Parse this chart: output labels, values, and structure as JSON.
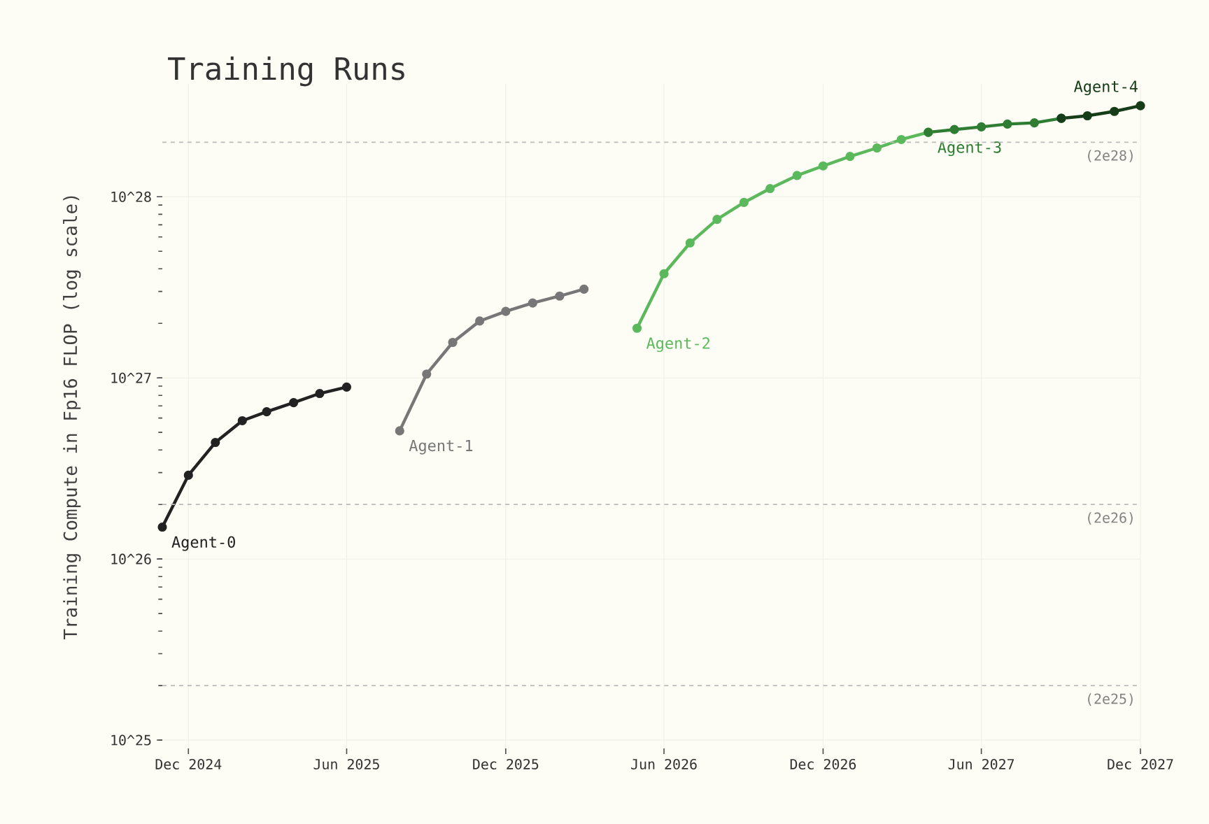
{
  "chart_data": {
    "type": "line",
    "title": "Training Runs",
    "ylabel": "Training Compute in Fp16 FLOP (log scale)",
    "log": "y",
    "grid": true,
    "marker": "circle",
    "line_style": "solid",
    "xlim": [
      "2024-11-01",
      "2027-12-01"
    ],
    "xticks": [
      {
        "value": "2024-12-01",
        "label": "Dec 2024"
      },
      {
        "value": "2025-06-01",
        "label": "Jun 2025"
      },
      {
        "value": "2025-12-01",
        "label": "Dec 2025"
      },
      {
        "value": "2026-06-01",
        "label": "Jun 2026"
      },
      {
        "value": "2026-12-01",
        "label": "Dec 2026"
      },
      {
        "value": "2027-06-01",
        "label": "Jun 2027"
      },
      {
        "value": "2027-12-01",
        "label": "Dec 2027"
      }
    ],
    "ylim": [
      9e+24,
      4.2e+28
    ],
    "yticks": [
      {
        "value": 1e+25,
        "label": "10^25"
      },
      {
        "value": 1e+26,
        "label": "10^26"
      },
      {
        "value": 1e+27,
        "label": "10^27"
      },
      {
        "value": 1e+28,
        "label": "10^28"
      }
    ],
    "ref_lines": [
      {
        "axis": "y",
        "value": 2e+28,
        "label": "(2e28)",
        "color": "#bbbbbb",
        "line_style": "dashed"
      },
      {
        "axis": "y",
        "value": 2e+26,
        "label": "(2e26)",
        "color": "#bbbbbb",
        "line_style": "dashed"
      },
      {
        "axis": "y",
        "value": 2e+25,
        "label": "(2e25)",
        "color": "#bbbbbb",
        "line_style": "dashed"
      }
    ],
    "series": [
      {
        "name": "Agent-0",
        "color": "#222222",
        "x": [
          "2024-11-01",
          "2024-12-01",
          "2025-01-01",
          "2025-02-01",
          "2025-03-01",
          "2025-04-01",
          "2025-05-01",
          "2025-06-01"
        ],
        "values": [
          1.5e+26,
          2.9e+26,
          4.4e+26,
          5.8e+26,
          6.5e+26,
          7.3e+26,
          8.2e+26,
          8.9e+26
        ]
      },
      {
        "name": "Agent-1",
        "color": "#777777",
        "x": [
          "2025-08-01",
          "2025-09-01",
          "2025-10-01",
          "2025-11-01",
          "2025-12-01",
          "2026-01-01",
          "2026-02-01",
          "2026-03-01"
        ],
        "values": [
          5.1e+26,
          1.05e+27,
          1.57e+27,
          2.06e+27,
          2.33e+27,
          2.59e+27,
          2.83e+27,
          3.09e+27
        ]
      },
      {
        "name": "Agent-2",
        "color": "#5cb85c",
        "x": [
          "2026-05-01",
          "2026-06-01",
          "2026-07-01",
          "2026-08-01",
          "2026-09-01",
          "2026-10-01",
          "2026-11-01",
          "2026-12-01",
          "2027-01-01",
          "2027-02-01",
          "2027-03-01",
          "2027-04-01"
        ],
        "values": [
          1.88e+27,
          3.76e+27,
          5.56e+27,
          7.5e+27,
          9.3e+27,
          1.11e+28,
          1.31e+28,
          1.48e+28,
          1.67e+28,
          1.86e+28,
          2.07e+28,
          2.27e+28
        ]
      },
      {
        "name": "Agent-3",
        "color": "#2e7d32",
        "x": [
          "2027-04-01",
          "2027-05-01",
          "2027-06-01",
          "2027-07-01",
          "2027-08-01",
          "2027-09-01"
        ],
        "values": [
          2.27e+28,
          2.35e+28,
          2.43e+28,
          2.52e+28,
          2.56e+28,
          2.71e+28
        ]
      },
      {
        "name": "Agent-4",
        "color": "#163d18",
        "x": [
          "2027-09-01",
          "2027-10-01",
          "2027-11-01",
          "2027-12-01"
        ],
        "values": [
          2.71e+28,
          2.8e+28,
          2.96e+28,
          3.18e+28
        ]
      }
    ]
  }
}
